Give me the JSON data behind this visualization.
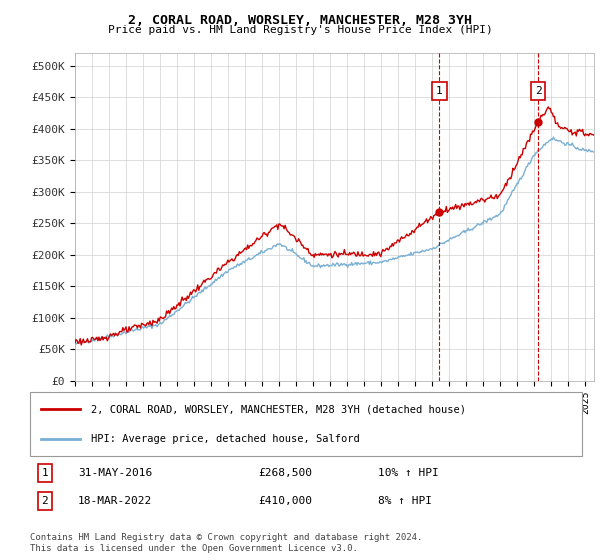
{
  "title": "2, CORAL ROAD, WORSLEY, MANCHESTER, M28 3YH",
  "subtitle": "Price paid vs. HM Land Registry's House Price Index (HPI)",
  "legend_line1": "2, CORAL ROAD, WORSLEY, MANCHESTER, M28 3YH (detached house)",
  "legend_line2": "HPI: Average price, detached house, Salford",
  "annotation1_label": "1",
  "annotation1_date": "31-MAY-2016",
  "annotation1_price": "£268,500",
  "annotation1_hpi": "10% ↑ HPI",
  "annotation1_year": 2016.42,
  "annotation1_value": 268500,
  "annotation2_label": "2",
  "annotation2_date": "18-MAR-2022",
  "annotation2_price": "£410,000",
  "annotation2_hpi": "8% ↑ HPI",
  "annotation2_year": 2022.21,
  "annotation2_value": 410000,
  "hpi_color": "#7ab0d4",
  "price_color": "#cc0000",
  "dashed_color": "#cc0000",
  "background_color": "#ffffff",
  "grid_color": "#d0d0d0",
  "footer_text": "Contains HM Land Registry data © Crown copyright and database right 2024.\nThis data is licensed under the Open Government Licence v3.0.",
  "ylim": [
    0,
    520000
  ],
  "yticks": [
    0,
    50000,
    100000,
    150000,
    200000,
    250000,
    300000,
    350000,
    400000,
    450000,
    500000
  ],
  "xmin": 1995.0,
  "xmax": 2025.5
}
